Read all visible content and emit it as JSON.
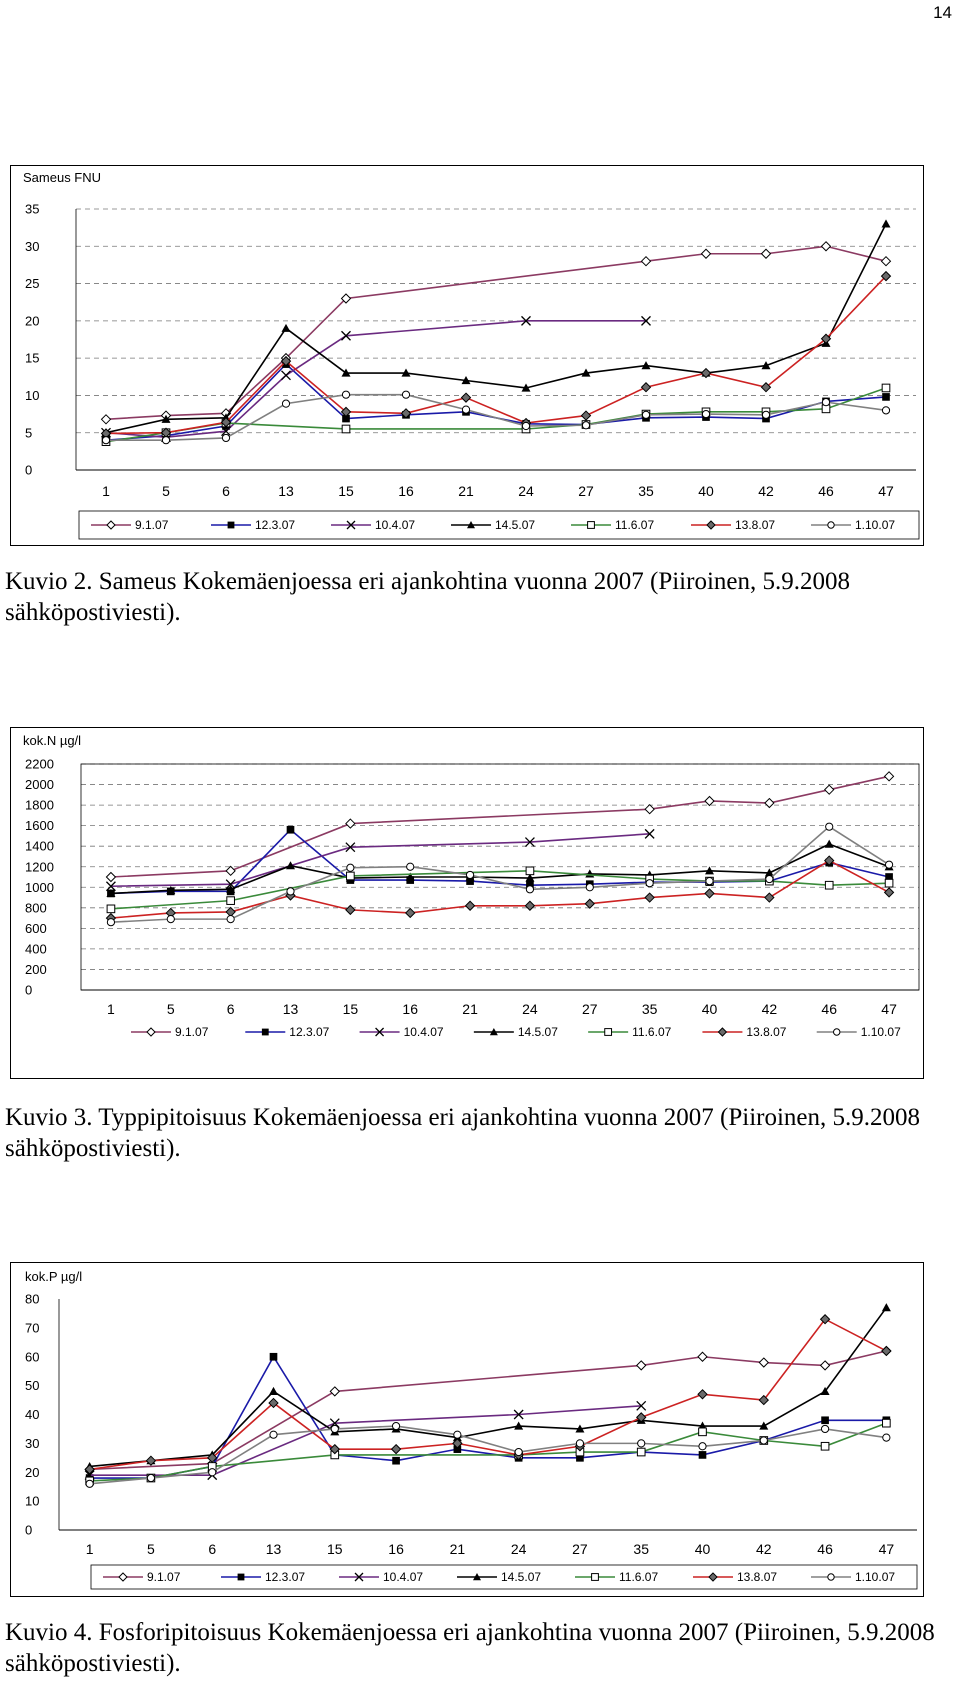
{
  "page": {
    "number": "14"
  },
  "legend_dates": [
    "9.1.07",
    "12.3.07",
    "10.4.07",
    "14.5.07",
    "11.6.07",
    "13.8.07",
    "1.10.07"
  ],
  "series_style": [
    {
      "color": "#8B3A62",
      "marker": "diamond-open"
    },
    {
      "color": "#1a1aa8",
      "marker": "square-filled"
    },
    {
      "color": "#6a2a80",
      "marker": "x"
    },
    {
      "color": "#000000",
      "marker": "triangle-filled"
    },
    {
      "color": "#3a8a3a",
      "marker": "square-open"
    },
    {
      "color": "#cc2222",
      "marker": "diamond-filled"
    },
    {
      "color": "#808080",
      "marker": "circle-open"
    }
  ],
  "captions": {
    "kuvio2": "Kuvio 2. Sameus Kokemäenjoessa eri ajankohtina vuonna 2007 (Piiroinen, 5.9.2008 sähköpostiviesti).",
    "kuvio3": "Kuvio 3. Typpipitoisuus Kokemäenjoessa eri ajankohtina vuonna 2007 (Piiroinen, 5.9.2008 sähköpostiviesti).",
    "kuvio4": "Kuvio 4. Fosforipitoisuus Kokemäenjoessa eri ajankohtina vuonna 2007 (Piiroinen, 5.9.2008 sähköpostiviesti)."
  },
  "chart_data": [
    {
      "type": "line",
      "ylabel": "Sameus FNU",
      "ylim": [
        0,
        35
      ],
      "yticks": [
        0,
        5,
        10,
        15,
        20,
        25,
        30,
        35
      ],
      "categories": [
        "1",
        "5",
        "6",
        "13",
        "15",
        "16",
        "21",
        "24",
        "27",
        "35",
        "40",
        "42",
        "46",
        "47"
      ],
      "grid": "dashed-horizontal",
      "legend_position": "bottom",
      "series": [
        {
          "name": "9.1.07",
          "values": [
            6.8,
            7.3,
            7.6,
            15,
            23,
            null,
            null,
            null,
            null,
            28,
            29,
            29,
            30,
            28
          ]
        },
        {
          "name": "12.3.07",
          "values": [
            4,
            4.6,
            5.9,
            14.2,
            6.9,
            7.4,
            7.8,
            6.2,
            6.1,
            7,
            7.1,
            6.9,
            9.2,
            9.8
          ]
        },
        {
          "name": "10.4.07",
          "values": [
            5,
            4.4,
            5.2,
            12.7,
            18,
            null,
            null,
            20,
            null,
            20,
            null,
            null,
            null,
            null
          ]
        },
        {
          "name": "14.5.07",
          "values": [
            5,
            6.8,
            7,
            19,
            13,
            13,
            12,
            11,
            13,
            14,
            13,
            14,
            17,
            33
          ]
        },
        {
          "name": "11.6.07",
          "values": [
            3.8,
            5,
            6.3,
            null,
            5.5,
            null,
            null,
            5.5,
            6.1,
            7.5,
            7.8,
            7.8,
            8.2,
            11
          ]
        },
        {
          "name": "13.8.07",
          "values": [
            4.9,
            5,
            6.4,
            14.6,
            7.8,
            7.6,
            9.7,
            6.3,
            7.3,
            11.1,
            13,
            11.1,
            17.6,
            26
          ]
        },
        {
          "name": "1.10.07",
          "values": [
            4,
            4,
            4.3,
            8.9,
            10.1,
            10.1,
            8.1,
            5.9,
            6,
            7.4,
            7.5,
            7.4,
            9.1,
            8
          ]
        }
      ]
    },
    {
      "type": "line",
      "ylabel": "kok.N µg/l",
      "ylim": [
        0,
        2200
      ],
      "yticks": [
        0,
        200,
        400,
        600,
        800,
        1000,
        1200,
        1400,
        1600,
        1800,
        2000,
        2200
      ],
      "categories": [
        "1",
        "5",
        "6",
        "13",
        "15",
        "16",
        "21",
        "24",
        "27",
        "35",
        "40",
        "42",
        "46",
        "47"
      ],
      "grid": "dashed-horizontal",
      "legend_position": "bottom",
      "series": [
        {
          "name": "9.1.07",
          "values": [
            1100,
            null,
            1160,
            null,
            1620,
            null,
            null,
            null,
            null,
            1760,
            1840,
            1820,
            1950,
            2080
          ]
        },
        {
          "name": "12.3.07",
          "values": [
            940,
            960,
            960,
            1560,
            1070,
            1070,
            1060,
            1020,
            1030,
            1050,
            1050,
            1060,
            1240,
            1100
          ]
        },
        {
          "name": "10.4.07",
          "values": [
            1010,
            null,
            1030,
            null,
            1390,
            null,
            null,
            1440,
            null,
            1520,
            null,
            null,
            null,
            null
          ]
        },
        {
          "name": "14.5.07",
          "values": [
            940,
            970,
            980,
            1210,
            1090,
            1100,
            1100,
            1090,
            1130,
            1120,
            1160,
            1140,
            1420,
            1200
          ]
        },
        {
          "name": "11.6.07",
          "values": [
            790,
            null,
            870,
            null,
            1110,
            null,
            null,
            1160,
            null,
            1080,
            1060,
            1060,
            1020,
            1040
          ]
        },
        {
          "name": "13.8.07",
          "values": [
            700,
            750,
            760,
            920,
            780,
            750,
            820,
            820,
            840,
            900,
            940,
            900,
            1260,
            950
          ]
        },
        {
          "name": "1.10.07",
          "values": [
            660,
            690,
            690,
            960,
            1190,
            1200,
            1120,
            980,
            1000,
            1040,
            1060,
            1080,
            1590,
            1220
          ]
        }
      ]
    },
    {
      "type": "line",
      "ylabel": "kok.P µg/l",
      "ylim": [
        0,
        80
      ],
      "yticks": [
        0,
        10,
        20,
        30,
        40,
        50,
        60,
        70,
        80
      ],
      "categories": [
        "1",
        "5",
        "6",
        "13",
        "15",
        "16",
        "21",
        "24",
        "27",
        "35",
        "40",
        "42",
        "46",
        "47"
      ],
      "grid": "none",
      "legend_position": "bottom",
      "series": [
        {
          "name": "9.1.07",
          "values": [
            21,
            null,
            23,
            null,
            48,
            null,
            null,
            null,
            null,
            57,
            60,
            58,
            57,
            62
          ]
        },
        {
          "name": "12.3.07",
          "values": [
            18,
            18,
            22,
            60,
            26,
            24,
            28,
            25,
            25,
            27,
            26,
            31,
            38,
            38
          ]
        },
        {
          "name": "10.4.07",
          "values": [
            19,
            null,
            19,
            null,
            37,
            null,
            null,
            40,
            null,
            43,
            null,
            null,
            null,
            null
          ]
        },
        {
          "name": "14.5.07",
          "values": [
            22,
            24,
            26,
            48,
            34,
            35,
            32,
            36,
            35,
            38,
            36,
            36,
            48,
            77
          ]
        },
        {
          "name": "11.6.07",
          "values": [
            17,
            18,
            22,
            null,
            26,
            null,
            null,
            26,
            27,
            27,
            34,
            31,
            29,
            37
          ]
        },
        {
          "name": "13.8.07",
          "values": [
            21,
            24,
            25,
            44,
            28,
            28,
            30,
            26,
            29,
            39,
            47,
            45,
            73,
            62
          ]
        },
        {
          "name": "1.10.07",
          "values": [
            16,
            18,
            20,
            33,
            35,
            36,
            33,
            27,
            30,
            30,
            29,
            31,
            35,
            32
          ]
        }
      ]
    }
  ]
}
